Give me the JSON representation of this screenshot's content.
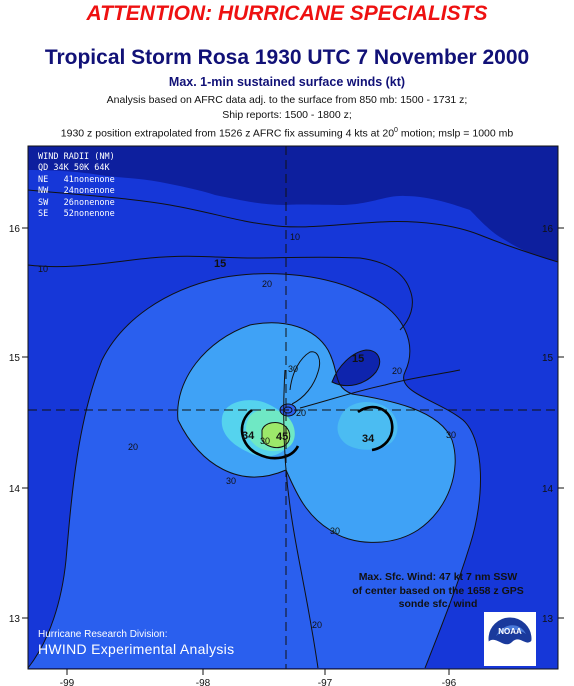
{
  "header": {
    "attention": "ATTENTION: HURRICANE SPECIALISTS",
    "title": "Tropical Storm Rosa 1930 UTC 7 November 2000",
    "subtitle": "Max. 1-min sustained surface winds (kt)",
    "note1": "Analysis based on AFRC data adj. to the surface from 850 mb: 1500 - 1731 z;",
    "note2": "Ship reports: 1500 - 1800 z;",
    "note3_pre": "1930 z position extrapolated from 1526 z AFRC fix assuming 4 kts at 20",
    "note3_sup": "0",
    "note3_post": " motion; mslp = 1000 mb"
  },
  "map": {
    "lon_ticks": [
      "-99",
      "-98",
      "-97",
      "-96"
    ],
    "lat_ticks": [
      "16",
      "15",
      "14",
      "13"
    ],
    "center": {
      "lon": -97.3,
      "lat": 14.6
    },
    "colors": {
      "land": "#0d1f9e",
      "ocean": "#1637d8",
      "band20": "#2a5fee",
      "band30": "#3fa2f6",
      "band34": "#55d3ee",
      "band40": "#6fe8c4",
      "band45": "#9ce86a"
    },
    "contour_labels": [
      "10",
      "10",
      "15",
      "20",
      "20",
      "30",
      "30",
      "30",
      "20",
      "15",
      "20",
      "34",
      "34",
      "30",
      "45",
      "30",
      "20"
    ]
  },
  "wind_radii": {
    "title": "WIND RADII (NM)",
    "header": "QD  34K  50K  64K",
    "rows": [
      {
        "qd": "NE",
        "vals": "41nonenone"
      },
      {
        "qd": "NW",
        "vals": "24nonenone"
      },
      {
        "qd": "SW",
        "vals": "26nonenone"
      },
      {
        "qd": "SE",
        "vals": "52nonenone"
      }
    ]
  },
  "max_wind": {
    "line1": "Max. Sfc. Wind: 47 kt 7 nm SSW",
    "line2": "of center based on the 1658 z GPS",
    "line3": "sonde sfc. wind"
  },
  "credit": {
    "line1": "Hurricane Research Division:",
    "line2": "HWIND Experimental Analysis"
  },
  "logo": {
    "text": "NOAA"
  }
}
